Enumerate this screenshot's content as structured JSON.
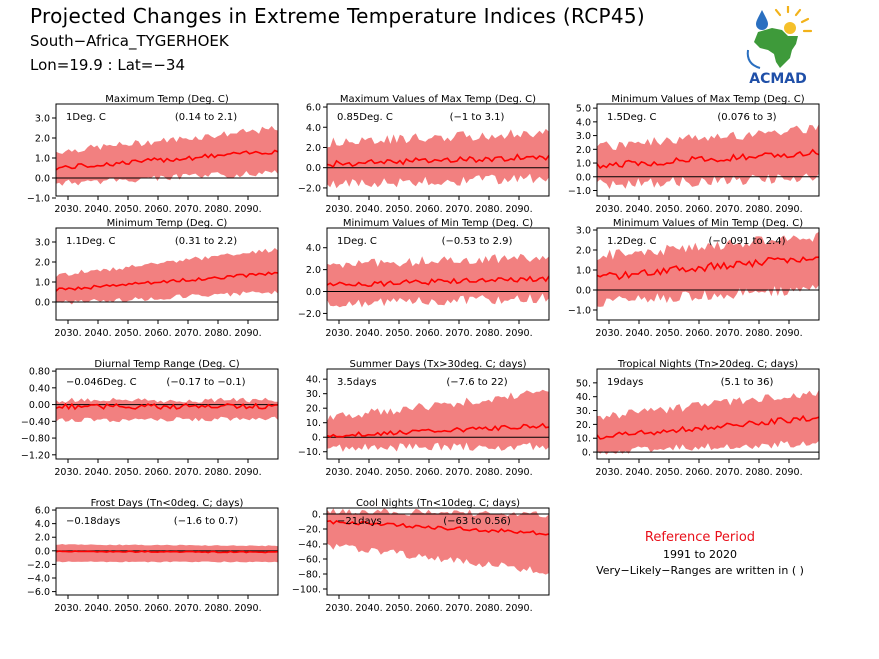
{
  "header": {
    "title": "Projected Changes in Extreme Temperature Indices (RCP45)",
    "location": "South−Africa_TYGERHOEK",
    "coords": "Lon=19.9 : Lat=−34"
  },
  "logo": {
    "text": "ACMAD",
    "icon": "africa-map-sun-drop-logo"
  },
  "reference": {
    "title": "Reference Period",
    "years": "1991 to 2020",
    "note": "Very−Likely−Ranges are written in ( )"
  },
  "colors": {
    "band": "#f28080",
    "line": "#ff0000",
    "zero": "#000000",
    "ref_title": "#e8101a"
  },
  "x_ticks": [
    "2030.",
    "2040.",
    "2050.",
    "2060.",
    "2070.",
    "2080.",
    "2090."
  ],
  "chart_data": [
    {
      "type": "area",
      "title": "Maximum Temp (Deg. C)",
      "mean_label": "1Deg. C",
      "range_label": "(0.14 to 2.1)",
      "xlim": [
        2026,
        2100
      ],
      "ylim": [
        -0.9,
        3.7
      ],
      "yticks": [
        "3.0",
        "2.0",
        "1.0",
        "0.0",
        "−1.0"
      ],
      "ytick_values": [
        3,
        2,
        1,
        0,
        -1
      ],
      "x": [
        2026,
        2100
      ],
      "median": [
        0.5,
        1.35
      ],
      "lower": [
        -0.2,
        0.35
      ],
      "upper": [
        1.25,
        2.4
      ],
      "band_noise": 0.35,
      "line_noise": 0.12
    },
    {
      "type": "area",
      "title": "Maximum Values of Max Temp (Deg. C)",
      "mean_label": "0.85Deg. C",
      "range_label": "(−1 to 3.1)",
      "xlim": [
        2026,
        2100
      ],
      "ylim": [
        -2.8,
        6.3
      ],
      "yticks": [
        "6.0",
        "4.0",
        "2.0",
        "0.0",
        "−2.0"
      ],
      "ytick_values": [
        6,
        4,
        2,
        0,
        -2
      ],
      "x": [
        2026,
        2100
      ],
      "median": [
        0.35,
        1.1
      ],
      "lower": [
        -1.5,
        -0.8
      ],
      "upper": [
        2.3,
        3.3
      ],
      "band_noise": 1.0,
      "line_noise": 0.3
    },
    {
      "type": "area",
      "title": "Minimum Values of Max Temp (Deg. C)",
      "mean_label": "1.5Deg. C",
      "range_label": "(0.076 to 3)",
      "xlim": [
        2026,
        2100
      ],
      "ylim": [
        -1.4,
        5.3
      ],
      "yticks": [
        "5.0",
        "4.0",
        "3.0",
        "2.0",
        "1.0",
        "0.0",
        "−1.0"
      ],
      "ytick_values": [
        5,
        4,
        3,
        2,
        1,
        0,
        -1
      ],
      "x": [
        2026,
        2100
      ],
      "median": [
        0.8,
        1.8
      ],
      "lower": [
        -0.4,
        0.1
      ],
      "upper": [
        2.0,
        3.4
      ],
      "band_noise": 0.8,
      "line_noise": 0.25
    },
    {
      "type": "area",
      "title": "Minimum Temp (Deg. C)",
      "mean_label": "1.1Deg. C",
      "range_label": "(0.31 to 2.2)",
      "xlim": [
        2026,
        2100
      ],
      "ylim": [
        -0.9,
        3.7
      ],
      "yticks": [
        "3.0",
        "2.0",
        "1.0",
        "0.0"
      ],
      "ytick_values": [
        3,
        2,
        1,
        0
      ],
      "x": [
        2026,
        2100
      ],
      "median": [
        0.6,
        1.45
      ],
      "lower": [
        0.0,
        0.55
      ],
      "upper": [
        1.3,
        2.6
      ],
      "band_noise": 0.25,
      "line_noise": 0.08
    },
    {
      "type": "area",
      "title": "Minimum Values of Min Temp (Deg. C)",
      "mean_label": "1Deg. C",
      "range_label": "(−0.53 to 2.9)",
      "xlim": [
        2026,
        2100
      ],
      "ylim": [
        -2.6,
        5.8
      ],
      "yticks": [
        "4.0",
        "2.0",
        "0.0",
        "−2.0"
      ],
      "ytick_values": [
        4,
        2,
        0,
        -2
      ],
      "x": [
        2026,
        2100
      ],
      "median": [
        0.6,
        1.2
      ],
      "lower": [
        -1.0,
        -0.4
      ],
      "upper": [
        2.3,
        3.0
      ],
      "band_noise": 0.9,
      "line_noise": 0.25
    },
    {
      "type": "area",
      "title": "Minimum Values of Min Temp (Deg. C)",
      "mean_label": "1.2Deg. C",
      "range_label": "(−0.091 to 2.4)",
      "xlim": [
        2026,
        2100
      ],
      "ylim": [
        -1.5,
        3.1
      ],
      "yticks": [
        "3.0",
        "2.0",
        "1.0",
        "0.0",
        "−1.0"
      ],
      "ytick_values": [
        3,
        2,
        1,
        0,
        -1
      ],
      "x": [
        2026,
        2100
      ],
      "median": [
        0.6,
        1.7
      ],
      "lower": [
        -0.5,
        0.2
      ],
      "upper": [
        1.6,
        2.6
      ],
      "band_noise": 0.55,
      "line_noise": 0.2
    },
    {
      "type": "area",
      "title": "Diurnal Temp Range (Deg. C)",
      "mean_label": "−0.046Deg. C",
      "range_label": "(−0.17 to −0.1)",
      "xlim": [
        2026,
        2100
      ],
      "ylim": [
        -1.3,
        0.85
      ],
      "yticks": [
        "0.80",
        "0.40",
        "0.00",
        "−0.40",
        "−0.80",
        "−1.20"
      ],
      "ytick_values": [
        0.8,
        0.4,
        0,
        -0.4,
        -0.8,
        -1.2
      ],
      "x": [
        2026,
        2100
      ],
      "median": [
        -0.05,
        -0.04
      ],
      "lower": [
        -0.35,
        -0.3
      ],
      "upper": [
        0.08,
        0.08
      ],
      "band_noise": 0.12,
      "line_noise": 0.06
    },
    {
      "type": "area",
      "title": "Summer Days (Tx>30deg. C; days)",
      "mean_label": "3.5days",
      "range_label": "(−7.6 to 22)",
      "xlim": [
        2026,
        2100
      ],
      "ylim": [
        -15,
        47
      ],
      "yticks": [
        "40.",
        "30.",
        "20.",
        "10.",
        "0.",
        "−10."
      ],
      "ytick_values": [
        40,
        30,
        20,
        10,
        0,
        -10
      ],
      "x": [
        2026,
        2100
      ],
      "median": [
        1.0,
        8.0
      ],
      "lower": [
        -6.0,
        -5.0
      ],
      "upper": [
        12.0,
        30.0
      ],
      "band_noise": 6.0,
      "line_noise": 1.5
    },
    {
      "type": "area",
      "title": "Tropical Nights (Tn>20deg. C; days)",
      "mean_label": "19days",
      "range_label": "(5.1 to 36)",
      "xlim": [
        2026,
        2100
      ],
      "ylim": [
        -5,
        60
      ],
      "yticks": [
        "50.",
        "40.",
        "30.",
        "20.",
        "10.",
        "0."
      ],
      "ytick_values": [
        50,
        40,
        30,
        20,
        10,
        0
      ],
      "x": [
        2026,
        2100
      ],
      "median": [
        11,
        25
      ],
      "lower": [
        2,
        8
      ],
      "upper": [
        24,
        42
      ],
      "band_noise": 6.0,
      "line_noise": 2.0
    },
    {
      "type": "area",
      "title": "Frost Days (Tn<0deg. C; days)",
      "mean_label": "−0.18days",
      "range_label": "(−1.6 to 0.7)",
      "xlim": [
        2026,
        2100
      ],
      "ylim": [
        -6.5,
        6.3
      ],
      "yticks": [
        "6.0",
        "4.0",
        "2.0",
        "0.0",
        "−2.0",
        "−4.0",
        "−6.0"
      ],
      "ytick_values": [
        6,
        4,
        2,
        0,
        -2,
        -4,
        -6
      ],
      "x": [
        2026,
        2100
      ],
      "median": [
        -0.1,
        -0.2
      ],
      "lower": [
        -1.6,
        -1.6
      ],
      "upper": [
        0.9,
        0.7
      ],
      "band_noise": 0.15,
      "line_noise": 0.08
    },
    {
      "type": "area",
      "title": "Cool Nights (Tn<10deg. C; days)",
      "mean_label": "−21days",
      "range_label": "(−63 to 0.56)",
      "xlim": [
        2026,
        2100
      ],
      "ylim": [
        -108,
        8
      ],
      "yticks": [
        "0.",
        "−20.",
        "−40.",
        "−60.",
        "−80.",
        "−100."
      ],
      "ytick_values": [
        0,
        -20,
        -40,
        -60,
        -80,
        -100
      ],
      "x": [
        2026,
        2100
      ],
      "median": [
        -10,
        -26
      ],
      "lower": [
        -40,
        -75
      ],
      "upper": [
        2,
        -2
      ],
      "band_noise": 10.0,
      "line_noise": 2.5
    }
  ]
}
